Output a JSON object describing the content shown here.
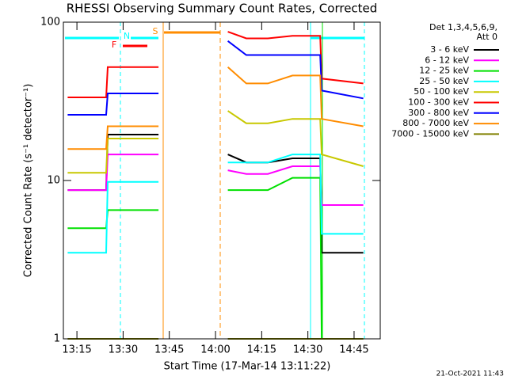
{
  "chart_data": {
    "type": "line",
    "title": "RHESSI Observing Summary Count Rates, Corrected",
    "xlabel": "Start Time (17-Mar-14 13:11:22)",
    "ylabel": "Corrected Count Rate (s⁻¹ detector⁻¹)",
    "legend_title": [
      "Det 1,3,4,5,6,9,",
      "Att 0"
    ],
    "footer": "21-Oct-2021 11:43",
    "annotations": [
      "N",
      "S",
      "F"
    ],
    "log_y": true,
    "ylim": [
      1,
      100
    ],
    "yticks": [
      1,
      10,
      100
    ],
    "xlim": [
      790.6,
      893.5
    ],
    "xticks": [
      {
        "value": 795,
        "label": "13:15"
      },
      {
        "value": 810,
        "label": "13:30"
      },
      {
        "value": 825,
        "label": "13:45"
      },
      {
        "value": 840,
        "label": "14:00"
      },
      {
        "value": 855,
        "label": "14:15"
      },
      {
        "value": 870,
        "label": "14:30"
      },
      {
        "value": 885,
        "label": "14:45"
      }
    ],
    "x": [
      792,
      804.5,
      805,
      815,
      821.5,
      833,
      844,
      850,
      857,
      865,
      874,
      874.5,
      888
    ],
    "series": [
      {
        "name": "3 - 6 keV",
        "color": "#000000",
        "values": [
          8.7,
          8.7,
          19.5,
          19.5,
          19.5,
          null,
          14.6,
          13,
          13,
          13.8,
          13.8,
          3.5,
          3.5
        ]
      },
      {
        "name": "6 - 12 keV",
        "color": "#ff00ff",
        "values": [
          8.7,
          8.7,
          14.6,
          14.6,
          14.6,
          null,
          11.6,
          11,
          11,
          12.3,
          12.3,
          7,
          7
        ]
      },
      {
        "name": "12 - 25 keV",
        "color": "#00e000",
        "values": [
          5,
          5,
          6.5,
          6.5,
          6.5,
          null,
          8.7,
          8.7,
          8.7,
          10.4,
          10.4,
          1,
          1
        ]
      },
      {
        "name": "25 - 50 keV",
        "color": "#00ffff",
        "values": [
          3.5,
          3.5,
          9.8,
          9.8,
          9.8,
          null,
          13,
          13,
          13,
          14.6,
          14.6,
          4.6,
          4.6
        ]
      },
      {
        "name": "50 - 100 keV",
        "color": "#c8c800",
        "values": [
          11.2,
          11.2,
          18.4,
          18.4,
          18.4,
          null,
          27.5,
          23,
          23,
          24.5,
          24.5,
          14.6,
          12.3
        ]
      },
      {
        "name": "100 - 300 keV",
        "color": "#ff0000",
        "values": [
          33.5,
          33.5,
          52,
          52,
          52,
          null,
          87,
          79,
          79,
          82,
          82,
          44,
          41
        ]
      },
      {
        "name": "300 - 800 keV",
        "color": "#0000ff",
        "values": [
          26,
          26,
          35.5,
          35.5,
          35.5,
          null,
          76,
          62,
          62,
          62,
          62,
          37,
          33
        ]
      },
      {
        "name": "800 - 7000 keV",
        "color": "#ff8c00",
        "values": [
          15.8,
          15.8,
          22,
          22,
          22,
          null,
          52,
          41,
          41,
          46,
          46,
          24.5,
          22
        ]
      },
      {
        "name": "7000 - 15000 keV",
        "color": "#808000",
        "values": [
          1,
          1,
          1,
          1,
          1,
          null,
          1,
          1,
          1,
          1,
          1,
          1,
          1
        ]
      }
    ]
  }
}
